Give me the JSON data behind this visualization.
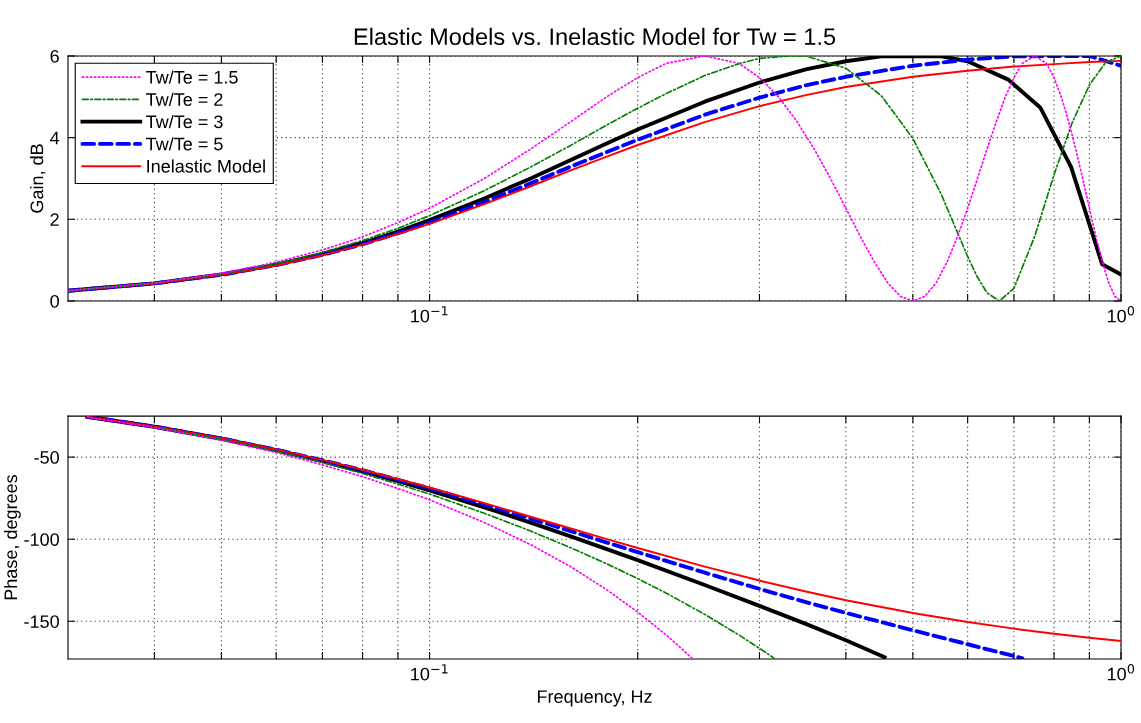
{
  "chart_data": [
    {
      "type": "line",
      "title": "Elastic Models vs. Inelastic Model for Tw = 1.5",
      "ylabel": "Gain, dB",
      "xlim": [
        0.03,
        1
      ],
      "log": "x",
      "ylim": [
        0,
        6
      ],
      "yticks": [
        0,
        2,
        4,
        6
      ],
      "xticks": [
        {
          "value": 0.04,
          "label": null
        },
        {
          "value": 0.05,
          "label": null
        },
        {
          "value": 0.06,
          "label": null
        },
        {
          "value": 0.07,
          "label": null
        },
        {
          "value": 0.08,
          "label": null
        },
        {
          "value": 0.09,
          "label": null
        },
        {
          "value": 0.1,
          "label": "10$^{−1}$"
        },
        {
          "value": 0.2,
          "label": null
        },
        {
          "value": 0.3,
          "label": null
        },
        {
          "value": 0.4,
          "label": null
        },
        {
          "value": 0.5,
          "label": null
        },
        {
          "value": 0.6,
          "label": null
        },
        {
          "value": 0.7,
          "label": null
        },
        {
          "value": 0.8,
          "label": null
        },
        {
          "value": 0.9,
          "label": null
        },
        {
          "value": 1,
          "label": "10$^{0}$"
        }
      ],
      "grid": true,
      "legend": "top left",
      "marker": "none",
      "series": [
        {
          "name": "Tw/Te = 1.5",
          "color": "#ff00ff",
          "line_style": "dotted",
          "x": [
            0.03,
            0.04,
            0.05,
            0.06,
            0.07,
            0.08,
            0.09,
            0.1,
            0.12,
            0.14,
            0.16,
            0.18,
            0.2,
            0.22,
            0.25,
            0.28,
            0.3,
            0.32,
            0.34,
            0.36,
            0.38,
            0.4,
            0.42,
            0.44,
            0.46,
            0.48,
            0.5,
            0.52,
            0.54,
            0.56,
            0.58,
            0.6,
            0.62,
            0.64,
            0.66,
            0.68,
            0.7,
            0.72,
            0.75,
            0.78,
            0.8,
            0.82,
            0.84,
            0.86,
            0.88,
            0.9,
            0.92,
            0.94,
            0.96,
            0.98,
            1.0
          ],
          "values": [
            0.25,
            0.44,
            0.68,
            0.95,
            1.25,
            1.57,
            1.92,
            2.27,
            3.0,
            3.72,
            4.39,
            4.99,
            5.47,
            5.82,
            6.0,
            5.82,
            5.47,
            4.99,
            4.39,
            3.72,
            3.0,
            2.27,
            1.57,
            0.95,
            0.44,
            0.11,
            0.0,
            0.11,
            0.44,
            0.95,
            1.57,
            2.27,
            3.0,
            3.72,
            4.39,
            4.99,
            5.47,
            5.82,
            6.0,
            5.82,
            5.47,
            4.99,
            4.39,
            3.72,
            3.0,
            2.27,
            1.57,
            0.95,
            0.44,
            0.11,
            0.0
          ]
        },
        {
          "name": "Tw/Te = 2",
          "color": "#008000",
          "line_style": "dashdot",
          "x": [
            0.03,
            0.04,
            0.05,
            0.06,
            0.07,
            0.08,
            0.09,
            0.1,
            0.12,
            0.14,
            0.16,
            0.18,
            0.2,
            0.22,
            0.25,
            0.28,
            0.3,
            0.333,
            0.35,
            0.4,
            0.45,
            0.5,
            0.55,
            0.6,
            0.62,
            0.64,
            0.667,
            0.7,
            0.75,
            0.8,
            0.85,
            0.9,
            0.95,
            1.0
          ],
          "values": [
            0.25,
            0.44,
            0.66,
            0.91,
            1.19,
            1.48,
            1.78,
            2.09,
            2.7,
            3.28,
            3.81,
            4.3,
            4.72,
            5.08,
            5.52,
            5.81,
            5.94,
            6.0,
            6.0,
            5.7,
            5.03,
            3.98,
            2.6,
            1.09,
            0.58,
            0.2,
            0.0,
            0.31,
            1.58,
            3.09,
            4.37,
            5.29,
            5.84,
            6.0
          ]
        },
        {
          "name": "Tw/Te = 3",
          "color": "#000000",
          "line_style": "solid",
          "x": [
            0.03,
            0.04,
            0.05,
            0.06,
            0.07,
            0.08,
            0.09,
            0.1,
            0.12,
            0.14,
            0.16,
            0.18,
            0.2,
            0.25,
            0.3,
            0.35,
            0.4,
            0.45,
            0.5,
            0.55,
            0.6,
            0.687,
            0.764,
            0.847,
            0.939,
            1.0
          ],
          "values": [
            0.25,
            0.43,
            0.65,
            0.89,
            1.15,
            1.42,
            1.7,
            1.98,
            2.51,
            3.0,
            3.45,
            3.85,
            4.2,
            4.88,
            5.35,
            5.67,
            5.87,
            5.99,
            6.0,
            5.99,
            5.87,
            5.42,
            4.74,
            3.28,
            0.9,
            0.65
          ]
        },
        {
          "name": "Tw/Te = 5",
          "color": "#0000ff",
          "line_style": "dashed",
          "x": [
            0.03,
            0.04,
            0.05,
            0.06,
            0.07,
            0.08,
            0.09,
            0.1,
            0.12,
            0.14,
            0.16,
            0.18,
            0.2,
            0.25,
            0.3,
            0.35,
            0.4,
            0.5,
            0.6,
            0.7,
            0.8,
            0.833,
            0.9,
            1.0
          ],
          "values": [
            0.25,
            0.43,
            0.64,
            0.88,
            1.13,
            1.39,
            1.66,
            1.92,
            2.42,
            2.88,
            3.29,
            3.64,
            3.95,
            4.56,
            4.98,
            5.28,
            5.49,
            5.76,
            5.91,
            5.99,
            6.0,
            6.0,
            6.0,
            5.76
          ]
        },
        {
          "name": "Inelastic Model",
          "color": "#ff0000",
          "line_style": "solid",
          "x": [
            0.03,
            0.04,
            0.05,
            0.06,
            0.07,
            0.08,
            0.09,
            0.1,
            0.12,
            0.14,
            0.16,
            0.18,
            0.2,
            0.25,
            0.3,
            0.35,
            0.4,
            0.5,
            0.6,
            0.7,
            0.8,
            0.9,
            1.0
          ],
          "values": [
            0.25,
            0.43,
            0.64,
            0.87,
            1.12,
            1.38,
            1.64,
            1.89,
            2.37,
            2.81,
            3.2,
            3.53,
            3.82,
            4.38,
            4.77,
            5.04,
            5.24,
            5.49,
            5.64,
            5.74,
            5.8,
            5.85,
            5.88
          ]
        }
      ]
    },
    {
      "type": "line",
      "ylabel": "Phase, degrees",
      "xlabel": "Frequency, Hz",
      "xlim": [
        0.03,
        1
      ],
      "log": "x",
      "ylim": [
        -173,
        -25
      ],
      "yticks": [
        -150,
        -100,
        -50
      ],
      "xticks": [
        {
          "value": 0.04,
          "label": null
        },
        {
          "value": 0.05,
          "label": null
        },
        {
          "value": 0.06,
          "label": null
        },
        {
          "value": 0.07,
          "label": null
        },
        {
          "value": 0.08,
          "label": null
        },
        {
          "value": 0.09,
          "label": null
        },
        {
          "value": 0.1,
          "label": "10$^{−1}$"
        },
        {
          "value": 0.2,
          "label": null
        },
        {
          "value": 0.3,
          "label": null
        },
        {
          "value": 0.4,
          "label": null
        },
        {
          "value": 0.5,
          "label": null
        },
        {
          "value": 0.6,
          "label": null
        },
        {
          "value": 0.7,
          "label": null
        },
        {
          "value": 0.8,
          "label": null
        },
        {
          "value": 0.9,
          "label": null
        },
        {
          "value": 1,
          "label": "10$^{0}$"
        }
      ],
      "grid": true,
      "marker": "none",
      "series": [
        {
          "color": "#ff00ff",
          "line_style": "dotted",
          "x": [
            0.032,
            0.04,
            0.05,
            0.06,
            0.07,
            0.08,
            0.09,
            0.1,
            0.12,
            0.14,
            0.16,
            0.18,
            0.2,
            0.22,
            0.23,
            0.24
          ],
          "values": [
            -25.7,
            -32.0,
            -39.7,
            -47.2,
            -54.7,
            -61.9,
            -69.1,
            -76.0,
            -89.8,
            -103.3,
            -116.8,
            -130.5,
            -144.4,
            -158.5,
            -165.6,
            -172.8
          ]
        },
        {
          "color": "#008000",
          "line_style": "dashdot",
          "x": [
            0.04,
            0.05,
            0.06,
            0.07,
            0.08,
            0.09,
            0.1,
            0.12,
            0.14,
            0.16,
            0.18,
            0.2,
            0.22,
            0.25,
            0.28,
            0.3,
            0.31,
            0.315
          ],
          "values": [
            -31.7,
            -39.1,
            -46.4,
            -53.3,
            -60.0,
            -66.4,
            -72.5,
            -84.2,
            -95.0,
            -105.2,
            -114.8,
            -124.0,
            -132.9,
            -145.8,
            -158.3,
            -166.5,
            -170.5,
            -172.6
          ]
        },
        {
          "color": "#000000",
          "line_style": "solid",
          "x": [
            0.032,
            0.04,
            0.05,
            0.06,
            0.07,
            0.08,
            0.09,
            0.1,
            0.12,
            0.14,
            0.16,
            0.18,
            0.2,
            0.25,
            0.3,
            0.35,
            0.4,
            0.45,
            0.455
          ],
          "values": [
            -25.4,
            -31.5,
            -38.8,
            -45.8,
            -52.4,
            -58.7,
            -64.6,
            -70.3,
            -80.6,
            -89.9,
            -98.3,
            -105.9,
            -112.8,
            -127.9,
            -140.6,
            -151.6,
            -161.6,
            -171.0,
            -171.9
          ]
        },
        {
          "color": "#0000ff",
          "line_style": "dashed",
          "x": [
            0.032,
            0.04,
            0.05,
            0.06,
            0.07,
            0.08,
            0.09,
            0.1,
            0.12,
            0.14,
            0.16,
            0.18,
            0.2,
            0.25,
            0.3,
            0.35,
            0.4,
            0.5,
            0.6,
            0.7,
            0.72
          ],
          "values": [
            -25.4,
            -31.4,
            -38.6,
            -45.5,
            -51.9,
            -58.0,
            -63.8,
            -69.1,
            -78.9,
            -87.5,
            -95.1,
            -101.9,
            -107.9,
            -120.4,
            -130.3,
            -138.3,
            -144.9,
            -155.5,
            -164.0,
            -171.2,
            -172.6
          ]
        },
        {
          "color": "#ff0000",
          "line_style": "solid",
          "x": [
            0.032,
            0.04,
            0.05,
            0.06,
            0.07,
            0.08,
            0.09,
            0.1,
            0.12,
            0.14,
            0.16,
            0.18,
            0.2,
            0.25,
            0.3,
            0.35,
            0.4,
            0.5,
            0.6,
            0.7,
            0.8,
            0.9,
            1.0
          ],
          "values": [
            -25.4,
            -31.3,
            -38.5,
            -45.3,
            -51.7,
            -57.7,
            -63.3,
            -68.5,
            -78.0,
            -86.3,
            -93.5,
            -99.8,
            -105.4,
            -116.7,
            -125.2,
            -131.9,
            -137.2,
            -145.0,
            -150.5,
            -154.5,
            -157.6,
            -160.0,
            -162.0
          ]
        }
      ]
    }
  ]
}
